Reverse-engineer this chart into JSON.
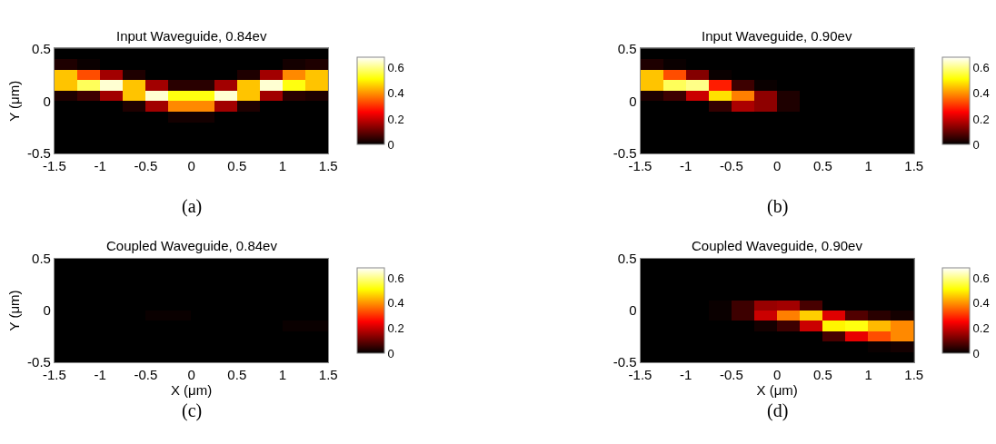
{
  "chart_data": [
    {
      "type": "heatmap",
      "title": "Input Waveguide, 0.84ev",
      "ylabel": "Y (μm)",
      "annotations": [
        "(a)"
      ],
      "x": [
        -1.375,
        -1.125,
        -0.875,
        -0.625,
        -0.375,
        -0.125,
        0.125,
        0.375,
        0.625,
        0.875,
        1.125,
        1.375
      ],
      "y": [
        0.45,
        0.35,
        0.25,
        0.15,
        0.05,
        -0.05,
        -0.15,
        -0.25,
        -0.35,
        -0.45
      ],
      "cells": [
        [
          0,
          0,
          0,
          0,
          0,
          0,
          0,
          0,
          0,
          0,
          0,
          0
        ],
        [
          0.03,
          0.01,
          0,
          0,
          0,
          0,
          0,
          0,
          0,
          0,
          0.02,
          0.03
        ],
        [
          0.45,
          0.33,
          0.16,
          0.03,
          0,
          0,
          0,
          0,
          0.03,
          0.16,
          0.39,
          0.45
        ],
        [
          0.45,
          0.57,
          0.65,
          0.45,
          0.16,
          0.04,
          0.04,
          0.16,
          0.45,
          0.65,
          0.52,
          0.45
        ],
        [
          0.03,
          0.06,
          0.16,
          0.45,
          0.65,
          0.52,
          0.52,
          0.65,
          0.45,
          0.16,
          0.04,
          0.03
        ],
        [
          0,
          0,
          0,
          0.03,
          0.16,
          0.39,
          0.39,
          0.16,
          0.03,
          0,
          0,
          0
        ],
        [
          0,
          0,
          0,
          0,
          0,
          0.02,
          0.02,
          0,
          0,
          0,
          0,
          0
        ],
        [
          0,
          0,
          0,
          0,
          0,
          0,
          0,
          0,
          0,
          0,
          0,
          0
        ],
        [
          0,
          0,
          0,
          0,
          0,
          0,
          0,
          0,
          0,
          0,
          0,
          0
        ],
        [
          0,
          0,
          0,
          0,
          0,
          0,
          0,
          0,
          0,
          0,
          0,
          0
        ]
      ],
      "xlim": [
        -1.5,
        1.5
      ],
      "ylim": [
        -0.5,
        0.5
      ],
      "xticks": [
        -1.5,
        -1,
        -0.5,
        0,
        0.5,
        1,
        1.5
      ],
      "yticks": [
        -0.5,
        0,
        0.5
      ],
      "clim": [
        0,
        0.68
      ],
      "cticks": [
        0,
        0.2,
        0.4,
        0.6
      ]
    },
    {
      "type": "heatmap",
      "title": "Input Waveguide, 0.90ev",
      "annotations": [
        "(b)"
      ],
      "x": [
        -1.375,
        -1.125,
        -0.875,
        -0.625,
        -0.375,
        -0.125,
        0.125,
        0.375,
        0.625,
        0.875,
        1.125,
        1.375
      ],
      "y": [
        0.45,
        0.35,
        0.25,
        0.15,
        0.05,
        -0.05,
        -0.15,
        -0.25,
        -0.35,
        -0.45
      ],
      "cells": [
        [
          0,
          0,
          0,
          0,
          0,
          0,
          0,
          0,
          0,
          0,
          0,
          0
        ],
        [
          0.03,
          0.01,
          0,
          0,
          0,
          0,
          0,
          0,
          0,
          0,
          0,
          0
        ],
        [
          0.45,
          0.33,
          0.13,
          0.01,
          0,
          0,
          0,
          0,
          0,
          0,
          0,
          0
        ],
        [
          0.45,
          0.57,
          0.6,
          0.28,
          0.06,
          0.01,
          0,
          0,
          0,
          0,
          0,
          0
        ],
        [
          0.03,
          0.06,
          0.2,
          0.48,
          0.38,
          0.14,
          0.03,
          0,
          0,
          0,
          0,
          0
        ],
        [
          0,
          0,
          0,
          0.05,
          0.17,
          0.14,
          0.03,
          0,
          0,
          0,
          0,
          0
        ],
        [
          0,
          0,
          0,
          0,
          0,
          0,
          0,
          0,
          0,
          0,
          0,
          0
        ],
        [
          0,
          0,
          0,
          0,
          0,
          0,
          0,
          0,
          0,
          0,
          0,
          0
        ],
        [
          0,
          0,
          0,
          0,
          0,
          0,
          0,
          0,
          0,
          0,
          0,
          0
        ],
        [
          0,
          0,
          0,
          0,
          0,
          0,
          0,
          0,
          0,
          0,
          0,
          0
        ]
      ],
      "xlim": [
        -1.5,
        1.5
      ],
      "ylim": [
        -0.5,
        0.5
      ],
      "xticks": [
        -1.5,
        -1,
        -0.5,
        0,
        0.5,
        1,
        1.5
      ],
      "yticks": [
        -0.5,
        0,
        0.5
      ],
      "clim": [
        0,
        0.68
      ],
      "cticks": [
        0,
        0.2,
        0.4,
        0.6
      ]
    },
    {
      "type": "heatmap",
      "title": "Coupled Waveguide, 0.84ev",
      "xlabel": "X (μm)",
      "ylabel": "Y (μm)",
      "annotations": [
        "(c)"
      ],
      "x": [
        -1.375,
        -1.125,
        -0.875,
        -0.625,
        -0.375,
        -0.125,
        0.125,
        0.375,
        0.625,
        0.875,
        1.125,
        1.375
      ],
      "y": [
        0.45,
        0.35,
        0.25,
        0.15,
        0.05,
        -0.05,
        -0.15,
        -0.25,
        -0.35,
        -0.45
      ],
      "cells": [
        [
          0,
          0,
          0,
          0,
          0,
          0,
          0,
          0,
          0,
          0,
          0,
          0
        ],
        [
          0,
          0,
          0,
          0,
          0,
          0,
          0,
          0,
          0,
          0,
          0,
          0
        ],
        [
          0,
          0,
          0,
          0,
          0,
          0,
          0,
          0,
          0,
          0,
          0,
          0
        ],
        [
          0,
          0,
          0,
          0,
          0,
          0,
          0,
          0,
          0,
          0,
          0,
          0
        ],
        [
          0,
          0,
          0,
          0,
          0,
          0,
          0,
          0,
          0,
          0,
          0,
          0
        ],
        [
          0,
          0,
          0,
          0,
          0.01,
          0.01,
          0,
          0,
          0,
          0,
          0,
          0
        ],
        [
          0,
          0,
          0,
          0,
          0,
          0,
          0,
          0,
          0,
          0,
          0.01,
          0.01
        ],
        [
          0,
          0,
          0,
          0,
          0,
          0,
          0,
          0,
          0,
          0,
          0,
          0
        ],
        [
          0,
          0,
          0,
          0,
          0,
          0,
          0,
          0,
          0,
          0,
          0,
          0
        ],
        [
          0,
          0,
          0,
          0,
          0,
          0,
          0,
          0,
          0,
          0,
          0,
          0
        ]
      ],
      "xlim": [
        -1.5,
        1.5
      ],
      "ylim": [
        -0.5,
        0.5
      ],
      "xticks": [
        -1.5,
        -1,
        -0.5,
        0,
        0.5,
        1,
        1.5
      ],
      "yticks": [
        -0.5,
        0,
        0.5
      ],
      "clim": [
        0,
        0.68
      ],
      "cticks": [
        0,
        0.2,
        0.4,
        0.6
      ]
    },
    {
      "type": "heatmap",
      "title": "Coupled Waveguide, 0.90ev",
      "xlabel": "X (μm)",
      "annotations": [
        "(d)"
      ],
      "x": [
        -1.375,
        -1.125,
        -0.875,
        -0.625,
        -0.375,
        -0.125,
        0.125,
        0.375,
        0.625,
        0.875,
        1.125,
        1.375
      ],
      "y": [
        0.45,
        0.35,
        0.25,
        0.15,
        0.05,
        -0.05,
        -0.15,
        -0.25,
        -0.35,
        -0.45
      ],
      "cells": [
        [
          0,
          0,
          0,
          0,
          0,
          0,
          0,
          0,
          0,
          0,
          0,
          0
        ],
        [
          0,
          0,
          0,
          0,
          0,
          0,
          0,
          0,
          0,
          0,
          0,
          0
        ],
        [
          0,
          0,
          0,
          0,
          0,
          0,
          0,
          0,
          0,
          0,
          0,
          0
        ],
        [
          0,
          0,
          0,
          0,
          0,
          0,
          0,
          0,
          0,
          0,
          0,
          0
        ],
        [
          0,
          0,
          0,
          0.01,
          0.06,
          0.15,
          0.16,
          0.07,
          0,
          0,
          0,
          0
        ],
        [
          0,
          0,
          0,
          0.01,
          0.06,
          0.2,
          0.38,
          0.46,
          0.22,
          0.08,
          0.04,
          0.02
        ],
        [
          0,
          0,
          0,
          0,
          0,
          0.02,
          0.06,
          0.2,
          0.5,
          0.52,
          0.44,
          0.39
        ],
        [
          0,
          0,
          0,
          0,
          0,
          0,
          0,
          0,
          0.07,
          0.23,
          0.33,
          0.39
        ],
        [
          0,
          0,
          0,
          0,
          0,
          0,
          0,
          0,
          0,
          0,
          0.01,
          0.02
        ],
        [
          0,
          0,
          0,
          0,
          0,
          0,
          0,
          0,
          0,
          0,
          0,
          0
        ]
      ],
      "xlim": [
        -1.5,
        1.5
      ],
      "ylim": [
        -0.5,
        0.5
      ],
      "xticks": [
        -1.5,
        -1,
        -0.5,
        0,
        0.5,
        1,
        1.5
      ],
      "yticks": [
        -0.5,
        0,
        0.5
      ],
      "clim": [
        0,
        0.68
      ],
      "cticks": [
        0,
        0.2,
        0.4,
        0.6
      ]
    }
  ]
}
